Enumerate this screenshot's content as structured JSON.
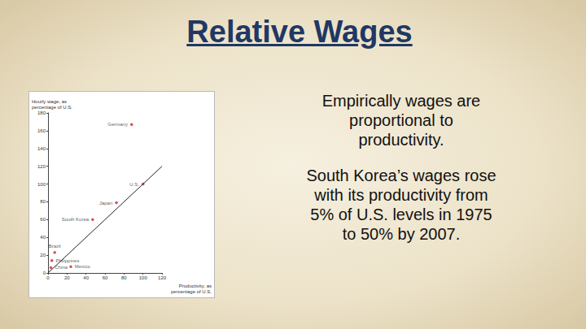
{
  "title": "Relative Wages",
  "paragraphs": [
    [
      "Empirically wages are",
      "proportional to",
      "productivity."
    ],
    [
      "South Korea’s wages rose",
      "with its productivity from",
      "5% of U.S. levels in 1975",
      "to 50% by 2007."
    ]
  ],
  "chart_data": {
    "type": "scatter",
    "x_label": "Productivity, as\npercentage of U.S.",
    "y_label": "Hourly wage, as\npercentage of U.S.",
    "points": [
      {
        "name": "Germany",
        "x": 88,
        "y": 167
      },
      {
        "name": "U.S.",
        "x": 100,
        "y": 100
      },
      {
        "name": "Japan",
        "x": 72,
        "y": 79
      },
      {
        "name": "South Korea",
        "x": 47,
        "y": 60
      },
      {
        "name": "Brazil",
        "x": 7,
        "y": 23
      },
      {
        "name": "Philippines",
        "x": 4,
        "y": 14
      },
      {
        "name": "China",
        "x": 3,
        "y": 6
      },
      {
        "name": "Mexico",
        "x": 24,
        "y": 7
      }
    ],
    "color": "#d0202a",
    "line": {
      "x": [
        0,
        120
      ],
      "y": [
        0,
        120
      ],
      "color": "#222222"
    },
    "xlim": [
      0,
      120
    ],
    "xticks": [
      0,
      20,
      40,
      60,
      80,
      100,
      120
    ],
    "ylim": [
      0,
      180
    ],
    "yticks": [
      0,
      20,
      40,
      60,
      80,
      100,
      120,
      140,
      160,
      180
    ],
    "grid": false
  }
}
